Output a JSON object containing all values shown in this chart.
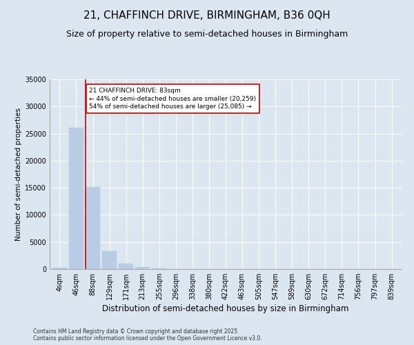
{
  "title": "21, CHAFFINCH DRIVE, BIRMINGHAM, B36 0QH",
  "subtitle": "Size of property relative to semi-detached houses in Birmingham",
  "xlabel": "Distribution of semi-detached houses by size in Birmingham",
  "ylabel": "Number of semi-detached properties",
  "footer_line1": "Contains HM Land Registry data © Crown copyright and database right 2025.",
  "footer_line2": "Contains public sector information licensed under the Open Government Licence v3.0.",
  "categories": [
    "4sqm",
    "46sqm",
    "88sqm",
    "129sqm",
    "171sqm",
    "213sqm",
    "255sqm",
    "296sqm",
    "338sqm",
    "380sqm",
    "422sqm",
    "463sqm",
    "505sqm",
    "547sqm",
    "589sqm",
    "630sqm",
    "672sqm",
    "714sqm",
    "756sqm",
    "797sqm",
    "839sqm"
  ],
  "values": [
    300,
    26100,
    15100,
    3300,
    1000,
    400,
    130,
    50,
    10,
    5,
    2,
    1,
    0,
    0,
    0,
    0,
    0,
    0,
    0,
    0,
    0
  ],
  "bar_color": "#b8cce4",
  "bar_edge_color": "#b8cce4",
  "property_line_x": 2,
  "property_sqm": 83,
  "annotation_text": "21 CHAFFINCH DRIVE: 83sqm\n← 44% of semi-detached houses are smaller (20,259)\n54% of semi-detached houses are larger (25,085) →",
  "annotation_box_color": "#ffffff",
  "annotation_box_edge": "#cc0000",
  "vline_color": "#cc0000",
  "ylim": [
    0,
    35000
  ],
  "yticks": [
    0,
    5000,
    10000,
    15000,
    20000,
    25000,
    30000,
    35000
  ],
  "background_color": "#dce6f0",
  "plot_background": "#dce6f0",
  "grid_color": "#ffffff",
  "title_fontsize": 11,
  "subtitle_fontsize": 9,
  "ylabel_fontsize": 7.5,
  "xlabel_fontsize": 8.5,
  "tick_fontsize": 7,
  "footer_fontsize": 5.5
}
